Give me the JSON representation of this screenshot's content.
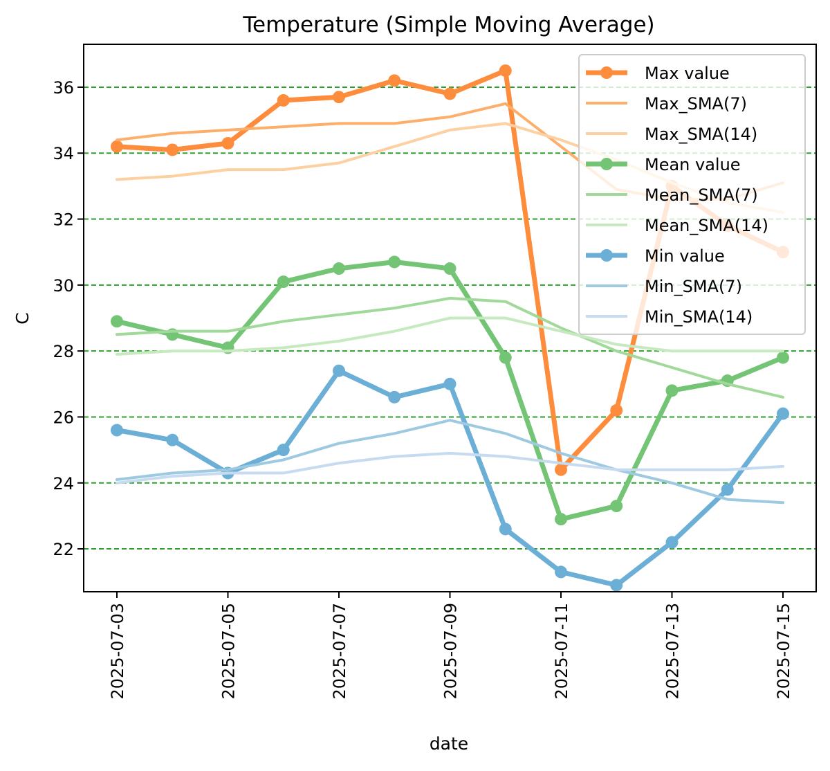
{
  "chart_data": {
    "type": "line",
    "title": "Temperature (Simple Moving Average)",
    "xlabel": "date",
    "ylabel": "C",
    "ylim": [
      20.7,
      37.3
    ],
    "yticks": [
      22,
      24,
      26,
      28,
      30,
      32,
      34,
      36
    ],
    "x": [
      "2025-07-03",
      "2025-07-04",
      "2025-07-05",
      "2025-07-06",
      "2025-07-07",
      "2025-07-08",
      "2025-07-09",
      "2025-07-10",
      "2025-07-11",
      "2025-07-12",
      "2025-07-13",
      "2025-07-14",
      "2025-07-15"
    ],
    "xticks": [
      "2025-07-03",
      "2025-07-05",
      "2025-07-07",
      "2025-07-09",
      "2025-07-11",
      "2025-07-13",
      "2025-07-15"
    ],
    "grid": "horizontal dashed",
    "grid_color": "#2ca02c",
    "legend_position": "upper right",
    "series": [
      {
        "name": "Max value",
        "color": "#fd8d3c",
        "markers": true,
        "values": [
          34.2,
          34.1,
          34.3,
          35.6,
          35.7,
          36.2,
          35.8,
          36.5,
          24.4,
          26.2,
          33.0,
          31.8,
          31.0
        ]
      },
      {
        "name": "Max_SMA(7)",
        "color": "#fdae6b",
        "markers": false,
        "values": [
          34.4,
          34.6,
          34.7,
          34.8,
          34.9,
          34.9,
          35.1,
          35.5,
          34.2,
          32.9,
          32.6,
          32.6,
          33.1
        ]
      },
      {
        "name": "Max_SMA(14)",
        "color": "#fdd0a2",
        "markers": false,
        "values": [
          33.2,
          33.3,
          33.5,
          33.5,
          33.7,
          34.2,
          34.7,
          34.9,
          34.4,
          33.8,
          33.1,
          32.5,
          32.2
        ]
      },
      {
        "name": "Mean value",
        "color": "#74c476",
        "markers": true,
        "values": [
          28.9,
          28.5,
          28.1,
          30.1,
          30.5,
          30.7,
          30.5,
          27.8,
          22.9,
          23.3,
          26.8,
          27.1,
          27.8
        ]
      },
      {
        "name": "Mean_SMA(7)",
        "color": "#a1d99b",
        "markers": false,
        "values": [
          28.5,
          28.6,
          28.6,
          28.9,
          29.1,
          29.3,
          29.6,
          29.5,
          28.7,
          28.0,
          27.5,
          27.0,
          26.6
        ]
      },
      {
        "name": "Mean_SMA(14)",
        "color": "#c7e9c0",
        "markers": false,
        "values": [
          27.9,
          28.0,
          28.0,
          28.1,
          28.3,
          28.6,
          29.0,
          29.0,
          28.6,
          28.2,
          28.0,
          28.0,
          28.0
        ]
      },
      {
        "name": "Min value",
        "color": "#6baed6",
        "markers": true,
        "values": [
          25.6,
          25.3,
          24.3,
          25.0,
          27.4,
          26.6,
          27.0,
          22.6,
          21.3,
          20.9,
          22.2,
          23.8,
          26.1
        ]
      },
      {
        "name": "Min_SMA(7)",
        "color": "#9ecae1",
        "markers": false,
        "values": [
          24.1,
          24.3,
          24.4,
          24.7,
          25.2,
          25.5,
          25.9,
          25.5,
          24.9,
          24.4,
          24.0,
          23.5,
          23.4
        ]
      },
      {
        "name": "Min_SMA(14)",
        "color": "#c6dbef",
        "markers": false,
        "values": [
          24.0,
          24.2,
          24.3,
          24.3,
          24.6,
          24.8,
          24.9,
          24.8,
          24.6,
          24.4,
          24.4,
          24.4,
          24.5
        ]
      }
    ]
  }
}
